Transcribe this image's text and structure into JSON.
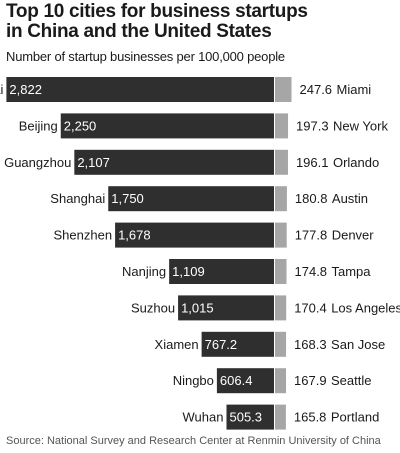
{
  "header": {
    "title_line1": "Top 10 cities for business startups",
    "title_line2": "in China and the United States",
    "subtitle": "Number of startup businesses per 100,000 people"
  },
  "footer": {
    "source": "Source: National Survey and Research Center at Renmin University of China"
  },
  "colors": {
    "china_bar": "#2f2f2f",
    "us_bar": "#a6a6a6",
    "china_label_text": "#ffffff",
    "text": "#1a1a1a"
  },
  "chart_data": {
    "type": "bar",
    "title": "Top 10 cities for business startups in China and the United States",
    "subtitle": "Number of startup businesses per 100,000 people",
    "series": [
      {
        "name": "China",
        "categories": [
          "Zhuhai",
          "Beijing",
          "Guangzhou",
          "Shanghai",
          "Shenzhen",
          "Nanjing",
          "Suzhou",
          "Xiamen",
          "Ningbo",
          "Wuhan"
        ],
        "values": [
          2822,
          2250,
          2107,
          1750,
          1678,
          1109,
          1015,
          767.2,
          606.4,
          505.3
        ],
        "labels": [
          "2,822",
          "2,250",
          "2,107",
          "1,750",
          "1,678",
          "1,109",
          "1,015",
          "767.2",
          "606.4",
          "505.3"
        ]
      },
      {
        "name": "United States",
        "categories": [
          "Miami",
          "New York",
          "Orlando",
          "Austin",
          "Denver",
          "Tampa",
          "Los Angeles",
          "San Jose",
          "Seattle",
          "Portland"
        ],
        "values": [
          247.6,
          197.3,
          196.1,
          180.8,
          177.8,
          174.8,
          170.4,
          168.3,
          167.9,
          165.8
        ],
        "labels": [
          "247.6",
          "197.3",
          "196.1",
          "180.8",
          "177.8",
          "174.8",
          "170.4",
          "168.3",
          "167.9",
          "165.8"
        ]
      }
    ],
    "orientation": "horizontal",
    "layout": "back-to-back",
    "source": "Source: National Survey and Research Center at Renmin University of China"
  }
}
